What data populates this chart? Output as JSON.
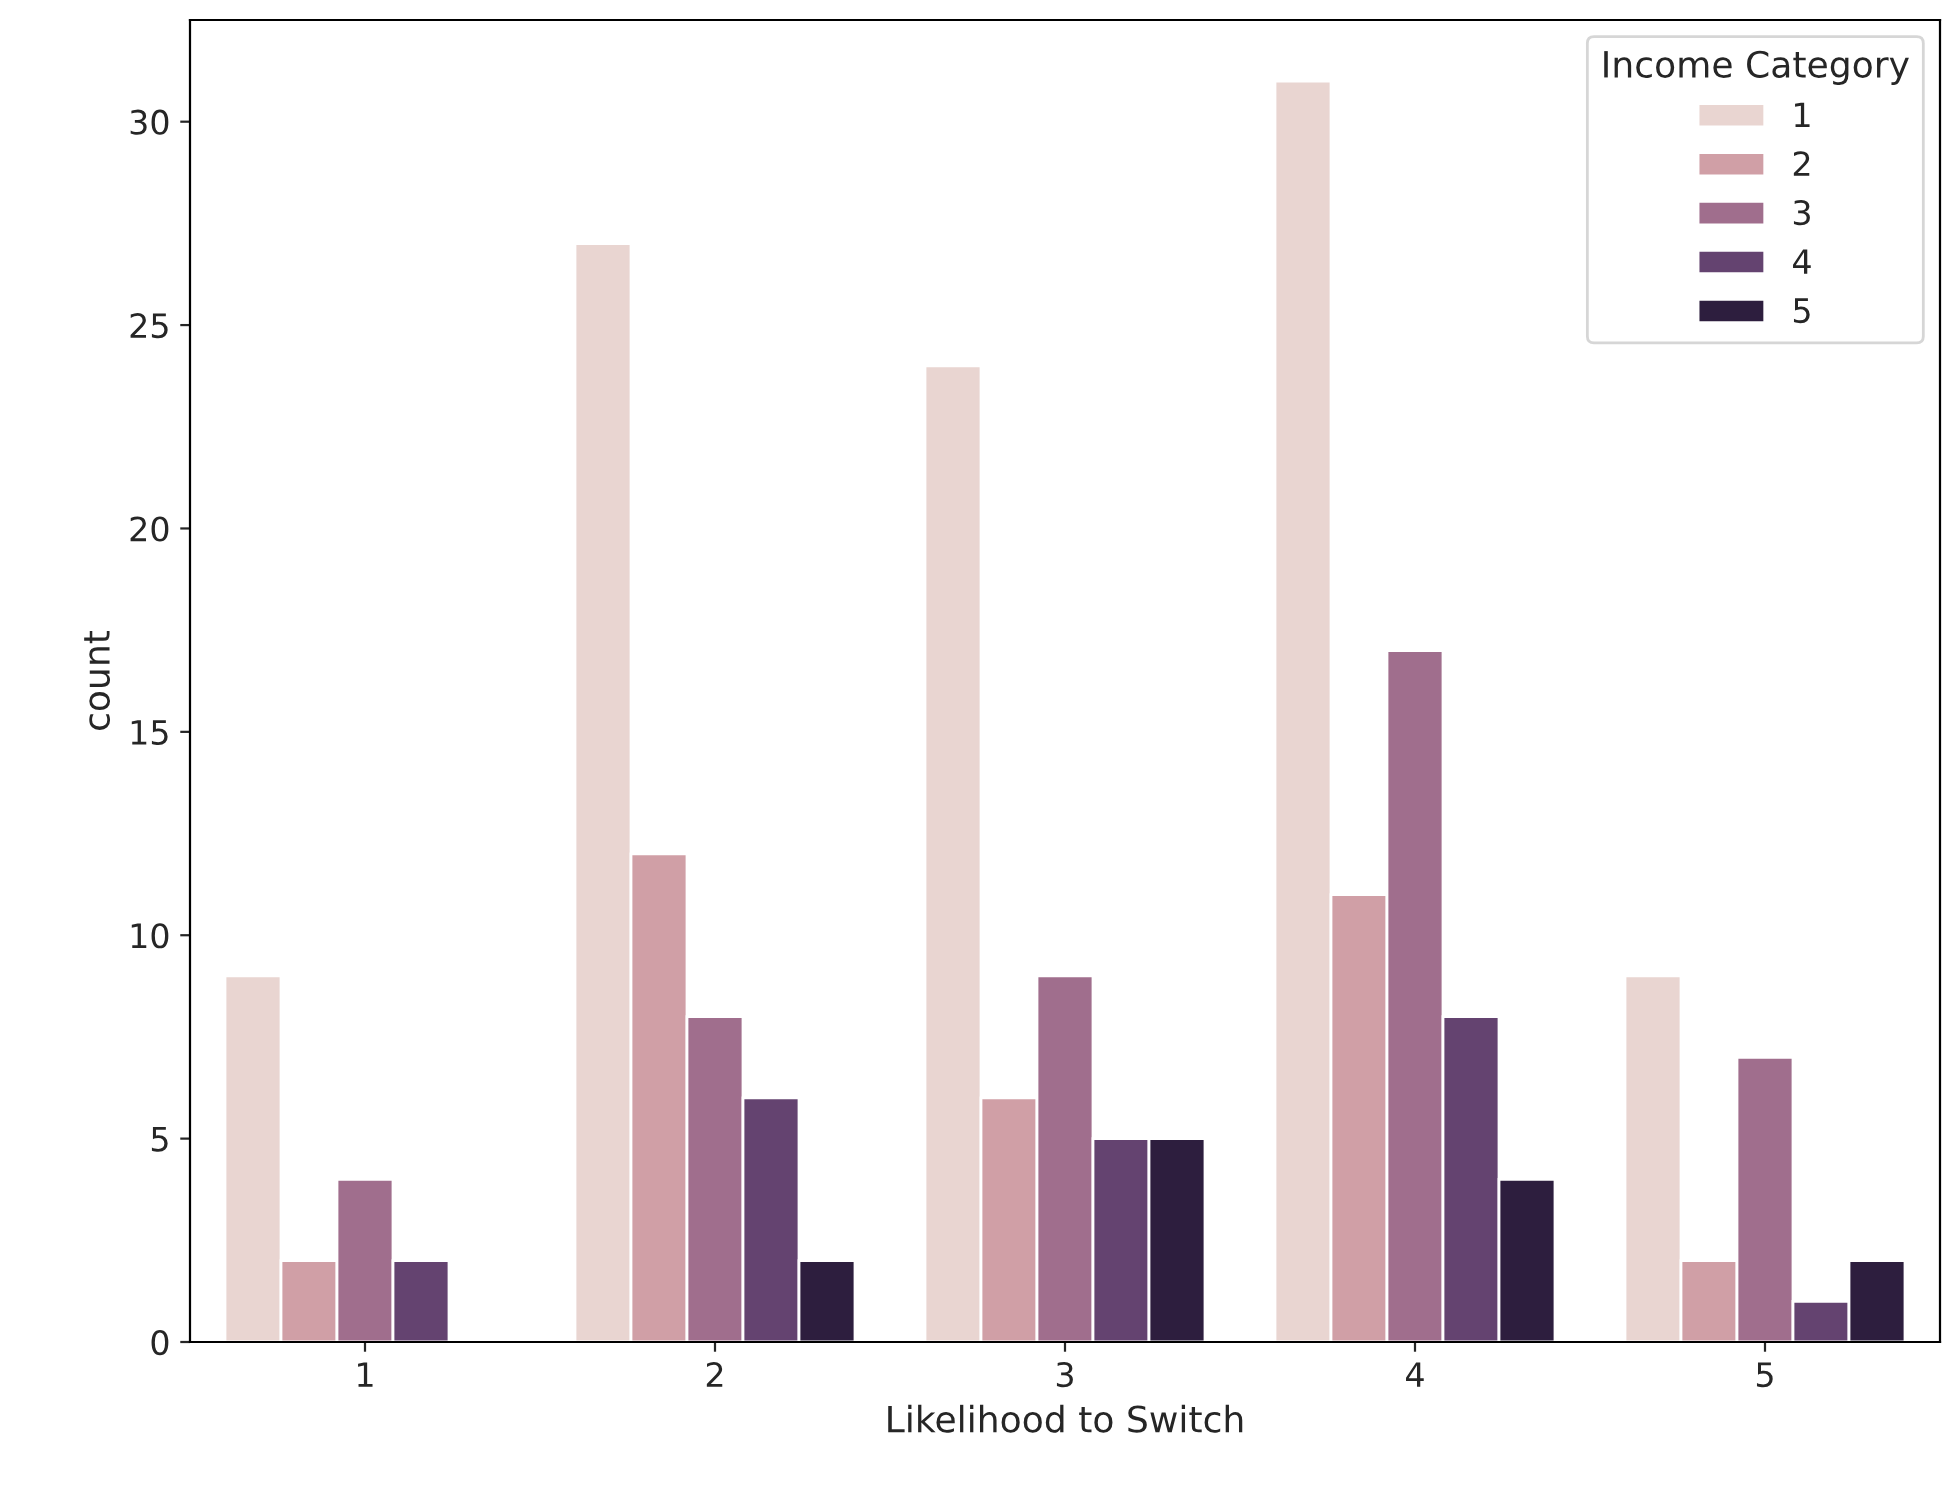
{
  "chart_data": {
    "type": "bar",
    "xlabel": "Likelihood to Switch",
    "ylabel": "count",
    "legend_title": "Income Category",
    "categories": [
      "1",
      "2",
      "3",
      "4",
      "5"
    ],
    "series": [
      {
        "name": "1",
        "color": "#e9d5d1",
        "values": [
          9,
          27,
          24,
          31,
          9
        ]
      },
      {
        "name": "2",
        "color": "#d09fa6",
        "values": [
          2,
          12,
          6,
          11,
          2
        ]
      },
      {
        "name": "3",
        "color": "#a06e8d",
        "values": [
          4,
          8,
          9,
          17,
          7
        ]
      },
      {
        "name": "4",
        "color": "#644370",
        "values": [
          2,
          6,
          5,
          8,
          1
        ]
      },
      {
        "name": "5",
        "color": "#2d1e3e",
        "values": [
          null,
          2,
          5,
          4,
          2
        ]
      }
    ],
    "ylim": [
      0,
      32.5
    ],
    "yticks": [
      0,
      5,
      10,
      15,
      20,
      25,
      30
    ],
    "legend": "top right",
    "grid": false
  }
}
